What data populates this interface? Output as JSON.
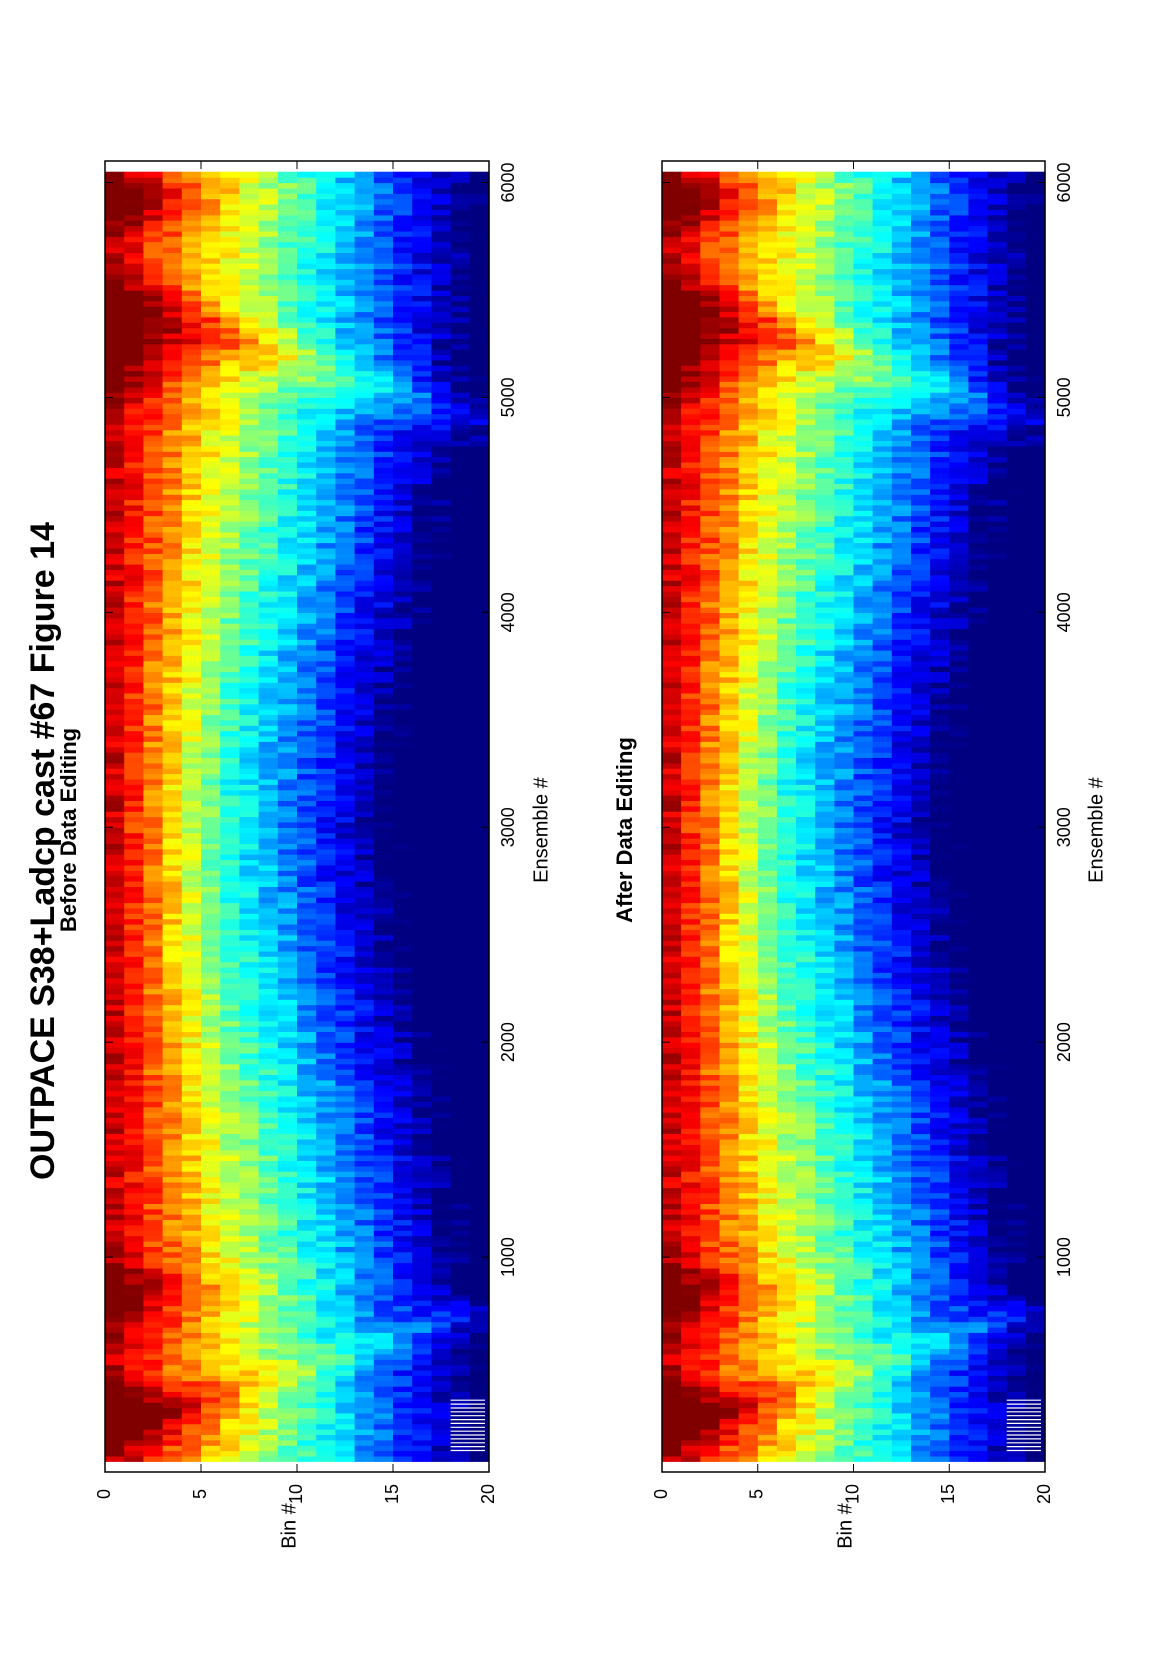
{
  "figure_title": "OUTPACE S38+Ladcp cast #67  Figure 14",
  "chart_data": [
    {
      "type": "heatmap",
      "title": "Before Data Editing",
      "xlabel": "Ensemble #",
      "ylabel": "Bin #",
      "xlim": [
        0,
        6100
      ],
      "ylim": [
        0,
        20
      ],
      "xticks": [
        1000,
        2000,
        3000,
        4000,
        5000,
        6000
      ],
      "yticks": [
        0,
        5,
        10,
        15,
        20
      ],
      "colormap": "jet",
      "grid": false,
      "description_values": {
        "bins": [
          1,
          2,
          3,
          4,
          5,
          6,
          7,
          8,
          9,
          10,
          11,
          12,
          13,
          14,
          15,
          16,
          17,
          18,
          19,
          20
        ],
        "high_intensity_near_bin": 1,
        "strong_near_surface_ensembles": [
          200,
          800,
          5200,
          5900
        ],
        "gaps_bins_19_20_ensembles": [
          100,
          350
        ]
      }
    },
    {
      "type": "heatmap",
      "title": "After Data Editing",
      "xlabel": "Ensemble #",
      "ylabel": "Bin #",
      "xlim": [
        0,
        6100
      ],
      "ylim": [
        0,
        20
      ],
      "xticks": [
        1000,
        2000,
        3000,
        4000,
        5000,
        6000
      ],
      "yticks": [
        0,
        5,
        10,
        15,
        20
      ],
      "colormap": "jet",
      "grid": false,
      "description_values": {
        "bins": [
          1,
          2,
          3,
          4,
          5,
          6,
          7,
          8,
          9,
          10,
          11,
          12,
          13,
          14,
          15,
          16,
          17,
          18,
          19,
          20
        ],
        "high_intensity_near_bin": 1,
        "strong_near_surface_ensembles": [
          200,
          800,
          5200,
          5900
        ],
        "gaps_bins_19_20_ensembles": [
          100,
          350
        ]
      }
    }
  ]
}
